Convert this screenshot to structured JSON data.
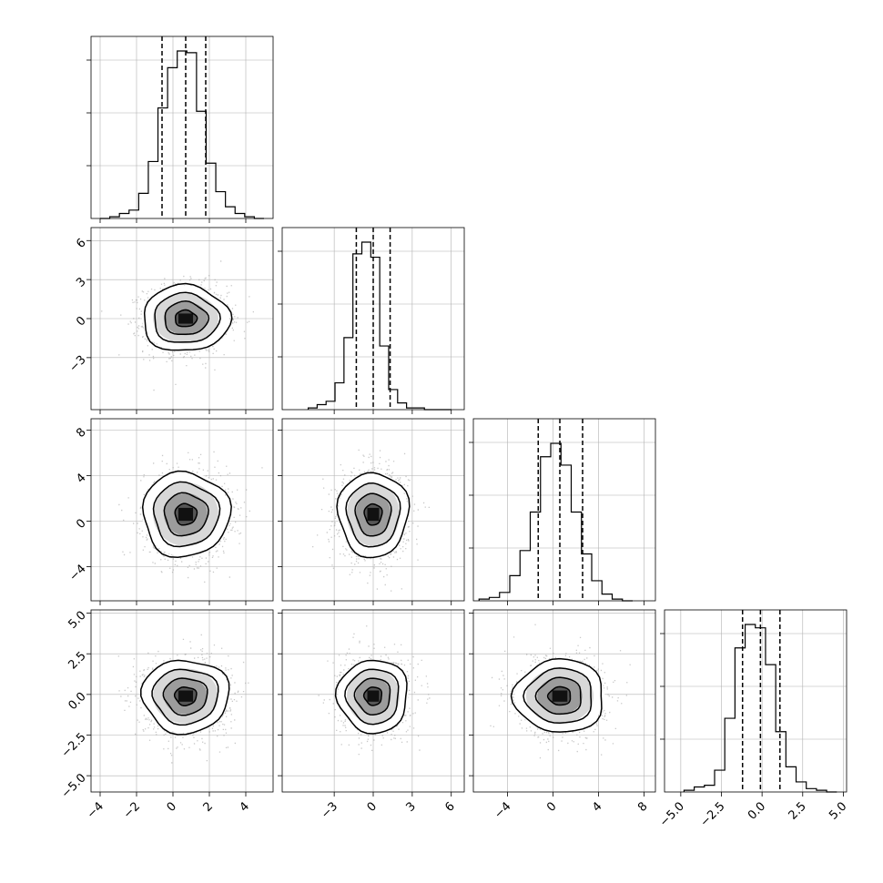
{
  "chart_data": {
    "type": "corner",
    "n_params": 4,
    "quantile_lines": "dashed",
    "grid": true,
    "colors": {
      "line": "#000000",
      "grid": "#b0b0b0",
      "scatter": "#9a9a9a",
      "frame": "#000000"
    },
    "params": [
      {
        "index": 0,
        "range": [
          -4.5,
          5.5
        ],
        "ticks": [
          -4,
          -2,
          0,
          2,
          4
        ],
        "tick_labels": [
          "−4",
          "−2",
          "0",
          "2",
          "4"
        ],
        "quantiles": [
          -0.6,
          0.7,
          1.8
        ],
        "center": 0.7,
        "sigma": 1.15,
        "hist": [
          0,
          0.01,
          0.03,
          0.05,
          0.15,
          0.34,
          0.66,
          0.9,
          1.0,
          0.99,
          0.64,
          0.33,
          0.16,
          0.07,
          0.03,
          0.01,
          0
        ],
        "hist_range": [
          -4.0,
          5.0
        ]
      },
      {
        "index": 1,
        "range": [
          -7,
          7
        ],
        "ticks": [
          -3,
          0,
          3,
          6
        ],
        "tick_labels": [
          "−3",
          "0",
          "3",
          "6"
        ],
        "quantiles": [
          -1.3,
          0.0,
          1.3
        ],
        "center": 0.0,
        "sigma": 1.3,
        "hist": [
          0.01,
          0.03,
          0.05,
          0.16,
          0.43,
          0.93,
          1.0,
          0.91,
          0.38,
          0.12,
          0.04,
          0.01,
          0.01,
          0,
          0,
          0
        ],
        "hist_range": [
          -5.0,
          6.0
        ]
      },
      {
        "index": 2,
        "range": [
          -7,
          9
        ],
        "ticks": [
          -4,
          0,
          4,
          8
        ],
        "tick_labels": [
          "−4",
          "0",
          "4",
          "8"
        ],
        "quantiles": [
          -1.3,
          0.6,
          2.6
        ],
        "center": 0.6,
        "sigma": 1.9,
        "hist": [
          0.01,
          0.02,
          0.05,
          0.15,
          0.3,
          0.53,
          0.86,
          0.94,
          0.81,
          0.53,
          0.28,
          0.12,
          0.04,
          0.01,
          0
        ],
        "hist_range": [
          -6.5,
          7.0
        ]
      },
      {
        "index": 3,
        "range": [
          -6,
          5.2
        ],
        "ticks": [
          -5.0,
          -2.5,
          0.0,
          2.5,
          5.0
        ],
        "tick_labels": [
          "−5.0",
          "−2.5",
          "0.0",
          "2.5",
          "5.0"
        ],
        "quantiles": [
          -1.2,
          -0.1,
          1.1
        ],
        "center": -0.1,
        "sigma": 1.15,
        "hist": [
          0.01,
          0.03,
          0.04,
          0.13,
          0.44,
          0.86,
          1.0,
          0.98,
          0.76,
          0.36,
          0.15,
          0.06,
          0.02,
          0.01,
          0
        ],
        "hist_range": [
          -4.8,
          4.6
        ]
      }
    ],
    "pairs": [
      {
        "x": 0,
        "y": 1,
        "label": "param 0 vs param 1"
      },
      {
        "x": 0,
        "y": 2,
        "label": "param 0 vs param 2"
      },
      {
        "x": 1,
        "y": 2,
        "label": "param 1 vs param 2"
      },
      {
        "x": 0,
        "y": 3,
        "label": "param 0 vs param 3"
      },
      {
        "x": 1,
        "y": 3,
        "label": "param 1 vs param 3"
      },
      {
        "x": 2,
        "y": 3,
        "label": "param 2 vs param 3"
      }
    ],
    "contour_sigma_levels": [
      0.5,
      1.0,
      1.5,
      2.0
    ]
  }
}
